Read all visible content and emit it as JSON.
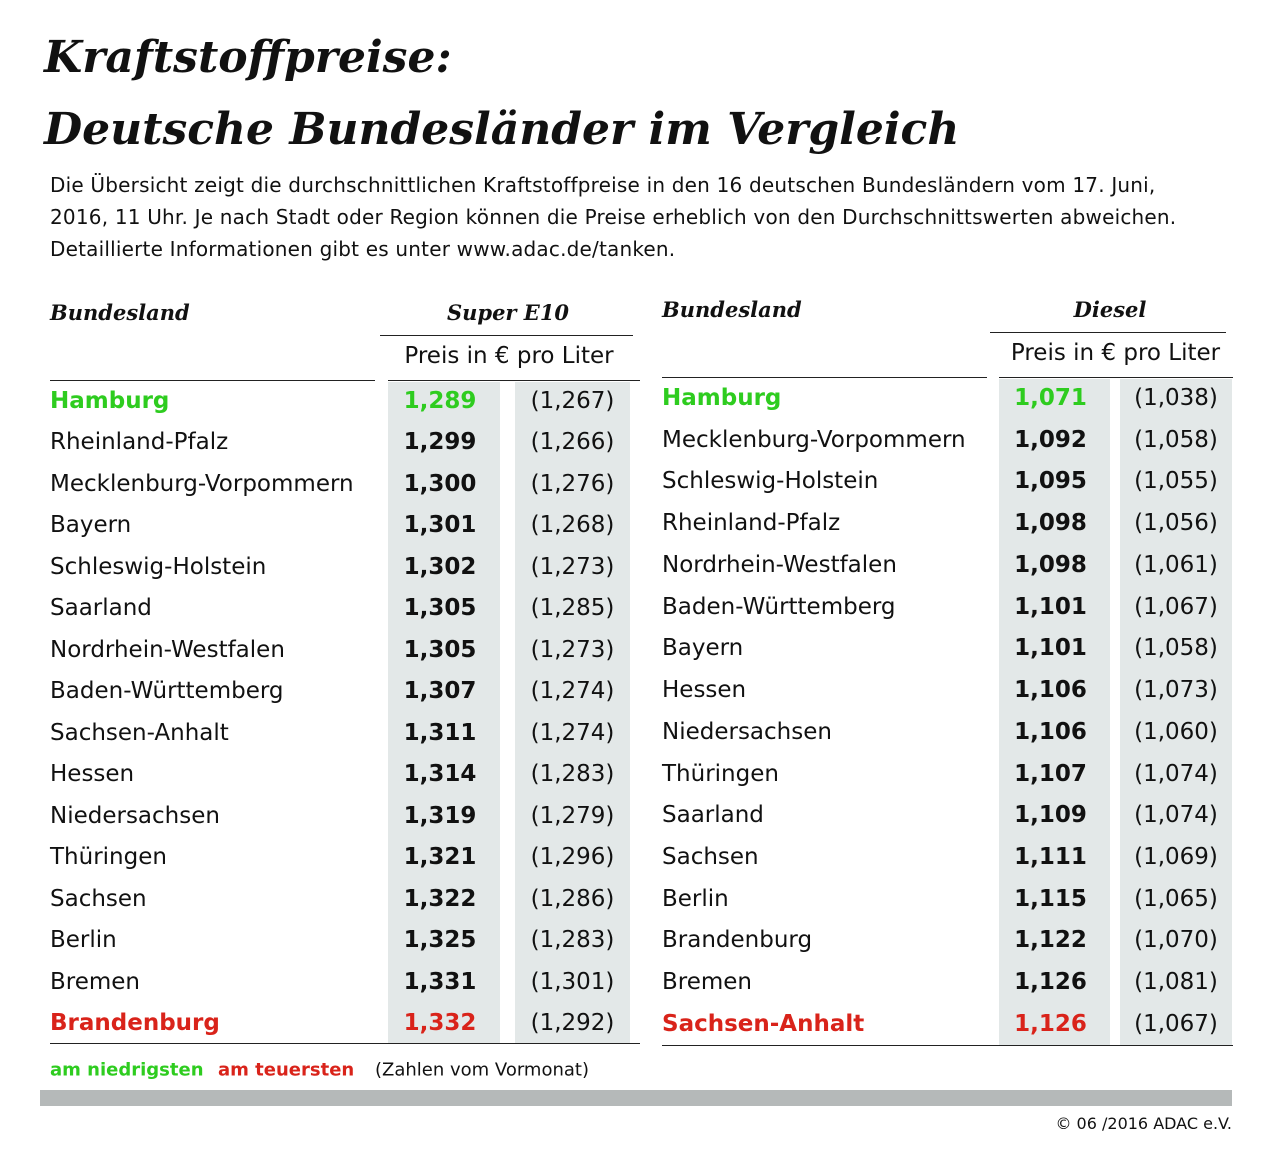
{
  "header": {
    "title_line1": "Kraftstoffpreise:",
    "title_line2": "Deutsche Bundesländer im Vergleich",
    "intro": [
      "Die Übersicht zeigt die durchschnittlichen Kraftstoffpreise in den 16 deutschen Bundesländern vom 17. Juni,",
      "2016, 11 Uhr. Je nach Stadt oder Region können die Preise erheblich von den Durchschnittswerten abweichen.",
      "Detaillierte Informationen gibt es unter www.adac.de/tanken."
    ]
  },
  "tables": [
    {
      "region_header": "Bundesland",
      "fuel_header": "Super E10",
      "unit": "Preis in € pro Liter",
      "rows": [
        [
          "Hamburg",
          "1,289",
          "(1,267)"
        ],
        [
          "Rheinland-Pfalz",
          "1,299",
          "(1,266)"
        ],
        [
          "Mecklenburg-Vorpommern",
          "1,300",
          "(1,276)"
        ],
        [
          "Bayern",
          "1,301",
          "(1,268)"
        ],
        [
          "Schleswig-Holstein",
          "1,302",
          "(1,273)"
        ],
        [
          "Saarland",
          "1,305",
          "(1,285)"
        ],
        [
          "Nordrhein-Westfalen",
          "1,305",
          "(1,273)"
        ],
        [
          "Baden-Württemberg",
          "1,307",
          "(1,274)"
        ],
        [
          "Sachsen-Anhalt",
          "1,311",
          "(1,274)"
        ],
        [
          "Hessen",
          "1,314",
          "(1,283)"
        ],
        [
          "Niedersachsen",
          "1,319",
          "(1,279)"
        ],
        [
          "Thüringen",
          "1,321",
          "(1,296)"
        ],
        [
          "Sachsen",
          "1,322",
          "(1,286)"
        ],
        [
          "Berlin",
          "1,325",
          "(1,283)"
        ],
        [
          "Bremen",
          "1,331",
          "(1,301)"
        ],
        [
          "Brandenburg",
          "1,332",
          "(1,292)"
        ]
      ]
    },
    {
      "region_header": "Bundesland",
      "fuel_header": "Diesel",
      "unit": "Preis in € pro Liter",
      "rows": [
        [
          "Hamburg",
          "1,071",
          "(1,038)"
        ],
        [
          "Mecklenburg-Vorpommern",
          "1,092",
          "(1,058)"
        ],
        [
          "Schleswig-Holstein",
          "1,095",
          "(1,055)"
        ],
        [
          "Rheinland-Pfalz",
          "1,098",
          "(1,056)"
        ],
        [
          "Nordrhein-Westfalen",
          "1,098",
          "(1,061)"
        ],
        [
          "Baden-Württemberg",
          "1,101",
          "(1,067)"
        ],
        [
          "Bayern",
          "1,101",
          "(1,058)"
        ],
        [
          "Hessen",
          "1,106",
          "(1,073)"
        ],
        [
          "Niedersachsen",
          "1,106",
          "(1,060)"
        ],
        [
          "Thüringen",
          "1,107",
          "(1,074)"
        ],
        [
          "Saarland",
          "1,109",
          "(1,074)"
        ],
        [
          "Sachsen",
          "1,111",
          "(1,069)"
        ],
        [
          "Berlin",
          "1,115",
          "(1,065)"
        ],
        [
          "Brandenburg",
          "1,122",
          "(1,070)"
        ],
        [
          "Bremen",
          "1,126",
          "(1,081)"
        ],
        [
          "Sachsen-Anhalt",
          "1,126",
          "(1,067)"
        ]
      ]
    }
  ],
  "legend": {
    "lowest": "am niedrigsten",
    "highest": "am teuersten",
    "note": "(Zahlen vom Vormonat)"
  },
  "footer": {
    "copyright": "© 06 /2016 ADAC e.V."
  }
}
